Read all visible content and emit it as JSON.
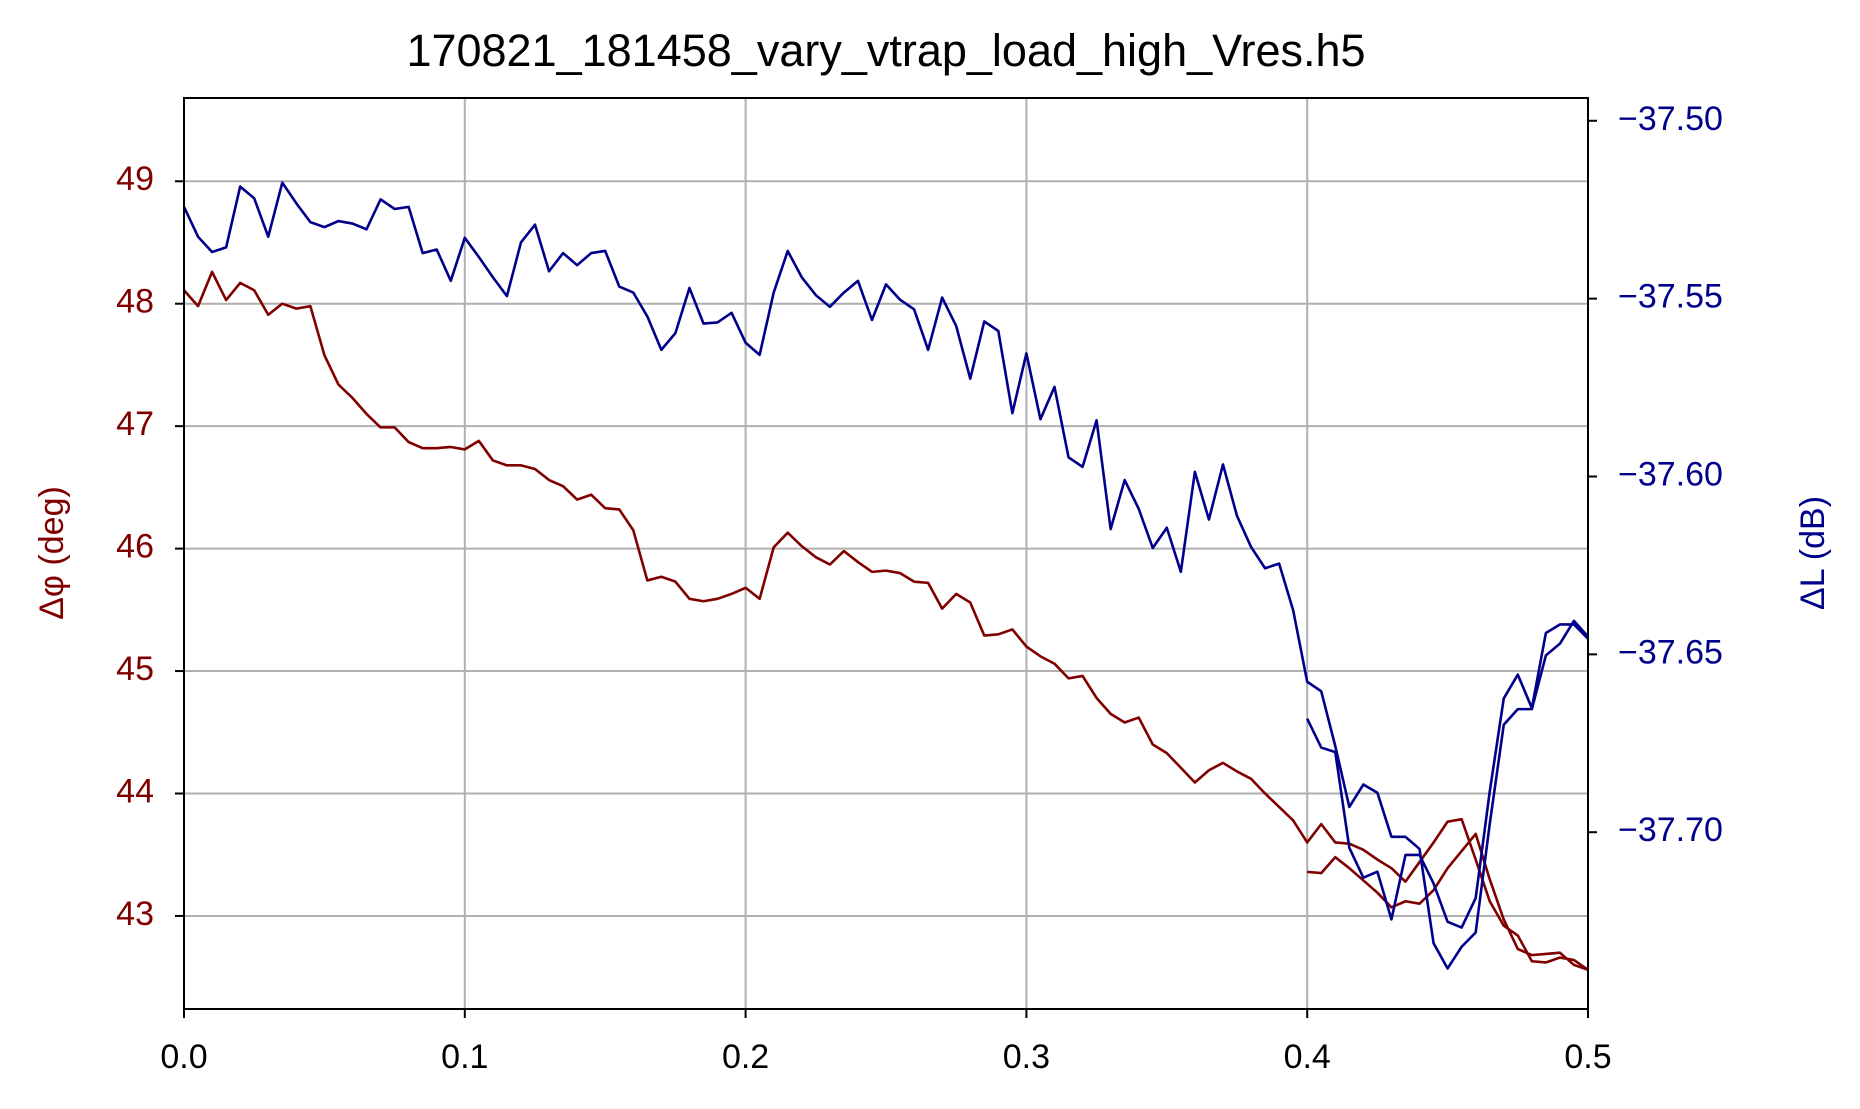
{
  "chart_data": {
    "type": "line",
    "title": "170821_181458_vary_vtrap_load_high_Vres.h5",
    "ylabel": "Δφ (deg)",
    "y2label": "ΔL (dB)",
    "grid": true,
    "xlim": [
      0,
      0.5
    ],
    "xticks": [
      {
        "value": 0,
        "label": "0.0"
      },
      0.1,
      0.2,
      0.3,
      0.4,
      0.5
    ],
    "ylim": [
      42.24,
      49.68
    ],
    "yticks": [
      43,
      44,
      45,
      46,
      47,
      48,
      49
    ],
    "y2lim": [
      -37.7497,
      -37.4936
    ],
    "y2ticks": [
      {
        "value": -37.5,
        "label": "−37.50"
      },
      {
        "value": -37.55,
        "label": "−37.55"
      },
      {
        "value": -37.6,
        "label": "−37.60"
      },
      {
        "value": -37.65,
        "label": "−37.65"
      },
      {
        "value": -37.7,
        "label": "−37.70"
      }
    ],
    "x": [
      0,
      0.005,
      0.01,
      0.015,
      0.02,
      0.025,
      0.03,
      0.035,
      0.04,
      0.045,
      0.05,
      0.055,
      0.06,
      0.065,
      0.07,
      0.075,
      0.08,
      0.085,
      0.09,
      0.095,
      0.1,
      0.105,
      0.11,
      0.115,
      0.12,
      0.125,
      0.13,
      0.135,
      0.14,
      0.145,
      0.15,
      0.155,
      0.16,
      0.165,
      0.17,
      0.175,
      0.18,
      0.185,
      0.19,
      0.195,
      0.2,
      0.205,
      0.21,
      0.215,
      0.22,
      0.225,
      0.23,
      0.235,
      0.24,
      0.245,
      0.25,
      0.255,
      0.26,
      0.265,
      0.27,
      0.275,
      0.28,
      0.285,
      0.29,
      0.295,
      0.3,
      0.305,
      0.31,
      0.315,
      0.32,
      0.325,
      0.33,
      0.335,
      0.34,
      0.345,
      0.35,
      0.355,
      0.36,
      0.365,
      0.37,
      0.375,
      0.38,
      0.385,
      0.39,
      0.395,
      0.4,
      0.405,
      0.41,
      0.415,
      0.42,
      0.425,
      0.43,
      0.435,
      0.44,
      0.445,
      0.45,
      0.455,
      0.46,
      0.465,
      0.47,
      0.475,
      0.48,
      0.485,
      0.49,
      0.495,
      0.5,
      null,
      0.4,
      0.405,
      0.41,
      0.415,
      0.42,
      0.425,
      0.43,
      0.435,
      0.44,
      0.445,
      0.45,
      0.455,
      0.46,
      0.465,
      0.47,
      0.475,
      0.48,
      0.485,
      0.49,
      0.495,
      0.5
    ],
    "series": [
      {
        "color": "#800000",
        "axis": "y",
        "values": [
          48.11,
          47.98,
          48.26,
          48.03,
          48.17,
          48.11,
          47.91,
          48.0,
          47.96,
          47.98,
          47.58,
          47.34,
          47.23,
          47.1,
          46.99,
          46.99,
          46.87,
          46.82,
          46.82,
          46.83,
          46.81,
          46.88,
          46.72,
          46.68,
          46.68,
          46.65,
          46.56,
          46.51,
          46.4,
          46.44,
          46.33,
          46.32,
          46.15,
          45.74,
          45.77,
          45.73,
          45.59,
          45.57,
          45.59,
          45.63,
          45.68,
          45.59,
          46.01,
          46.13,
          46.02,
          45.93,
          45.87,
          45.98,
          45.89,
          45.81,
          45.82,
          45.8,
          45.73,
          45.72,
          45.51,
          45.63,
          45.56,
          45.29,
          45.3,
          45.34,
          45.2,
          45.12,
          45.06,
          44.94,
          44.96,
          44.78,
          44.65,
          44.58,
          44.62,
          44.4,
          44.33,
          44.21,
          44.09,
          44.19,
          44.25,
          44.18,
          44.12,
          44.0,
          43.89,
          43.78,
          43.6,
          43.75,
          43.6,
          43.59,
          43.54,
          43.46,
          43.39,
          43.28,
          43.44,
          43.6,
          43.77,
          43.79,
          43.46,
          43.12,
          42.92,
          42.84,
          42.63,
          42.62,
          42.66,
          42.64,
          42.56,
          null,
          43.36,
          43.35,
          43.48,
          43.39,
          43.29,
          43.19,
          43.07,
          43.12,
          43.1,
          43.21,
          43.39,
          43.53,
          43.67,
          43.3,
          42.97,
          42.73,
          42.68,
          42.69,
          42.7,
          42.6,
          42.56
        ]
      },
      {
        "color": "#00008b",
        "axis": "y2",
        "values": [
          -37.5242,
          -37.5326,
          -37.5369,
          -37.5356,
          -37.5185,
          -37.5218,
          -37.5326,
          -37.5174,
          -37.5232,
          -37.5285,
          -37.5299,
          -37.5282,
          -37.5289,
          -37.5305,
          -37.5221,
          -37.5248,
          -37.5242,
          -37.5372,
          -37.5362,
          -37.545,
          -37.5329,
          -37.5383,
          -37.544,
          -37.5493,
          -37.5342,
          -37.5292,
          -37.5423,
          -37.5372,
          -37.5406,
          -37.5372,
          -37.5366,
          -37.5466,
          -37.5483,
          -37.555,
          -37.5644,
          -37.5597,
          -37.547,
          -37.557,
          -37.5567,
          -37.554,
          -37.5624,
          -37.5658,
          -37.5483,
          -37.5366,
          -37.544,
          -37.549,
          -37.5523,
          -37.5483,
          -37.545,
          -37.556,
          -37.546,
          -37.5503,
          -37.553,
          -37.5644,
          -37.5497,
          -37.5577,
          -37.5725,
          -37.5564,
          -37.5591,
          -37.5822,
          -37.5654,
          -37.5839,
          -37.5748,
          -37.5946,
          -37.5973,
          -37.5842,
          -37.6148,
          -37.601,
          -37.6091,
          -37.6201,
          -37.6144,
          -37.6268,
          -37.5987,
          -37.6121,
          -37.5966,
          -37.6111,
          -37.6198,
          -37.6258,
          -37.6245,
          -37.6376,
          -37.6577,
          -37.6604,
          -37.6758,
          -37.6929,
          -37.6866,
          -37.6889,
          -37.7013,
          -37.7013,
          -37.7047,
          -37.7312,
          -37.7383,
          -37.7322,
          -37.7282,
          -37.6977,
          -37.6698,
          -37.6654,
          -37.6654,
          -37.6503,
          -37.647,
          -37.6406,
          -37.645,
          null,
          -37.6681,
          -37.6762,
          -37.6775,
          -37.7044,
          -37.7128,
          -37.7111,
          -37.7245,
          -37.7064,
          -37.7064,
          -37.7144,
          -37.7252,
          -37.7268,
          -37.7185,
          -37.6886,
          -37.6624,
          -37.6557,
          -37.6651,
          -37.644,
          -37.6416,
          -37.6416,
          -37.6456
        ]
      }
    ]
  }
}
